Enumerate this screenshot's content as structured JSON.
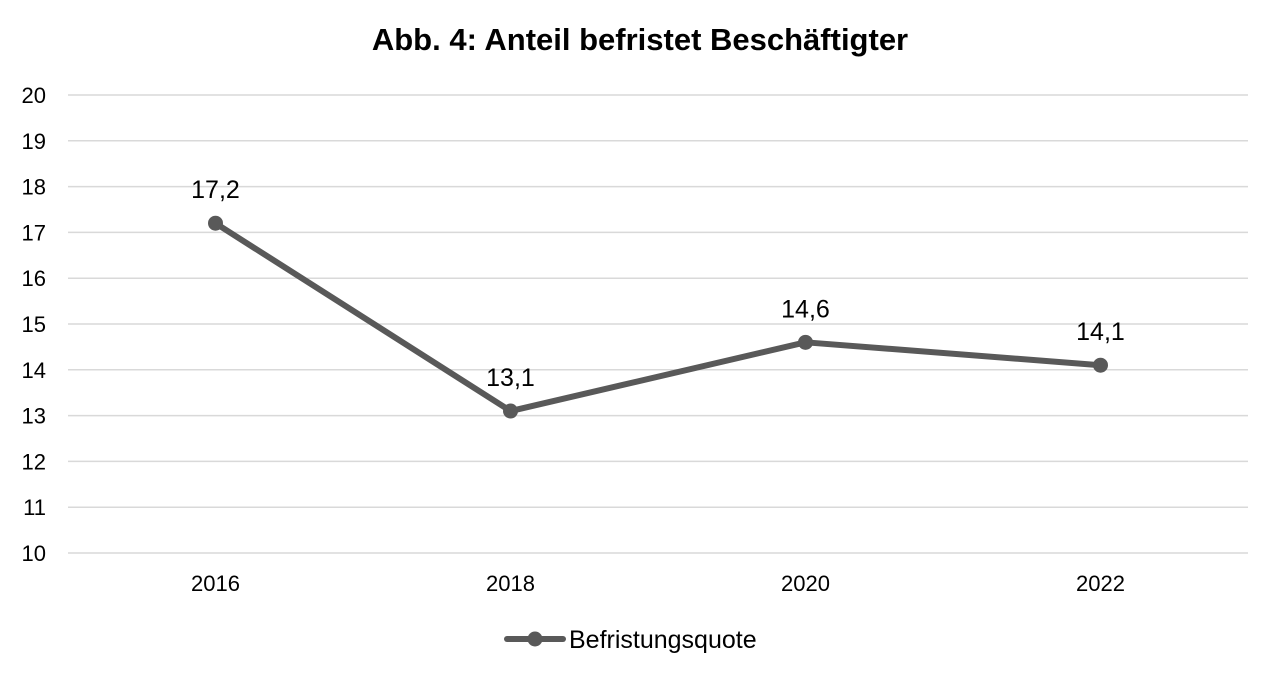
{
  "chart_data": {
    "type": "line",
    "title": "Abb. 4: Anteil befristet Beschäftigter",
    "xlabel": "",
    "ylabel": "",
    "categories": [
      "2016",
      "2018",
      "2020",
      "2022"
    ],
    "series": [
      {
        "name": "Befristungsquote",
        "values": [
          17.2,
          13.1,
          14.6,
          14.1
        ],
        "labels": [
          "17,2",
          "13,1",
          "14,6",
          "14,1"
        ],
        "color": "#595959"
      }
    ],
    "ylim": [
      10,
      20
    ],
    "yticks": [
      "10",
      "11",
      "12",
      "13",
      "14",
      "15",
      "16",
      "17",
      "18",
      "19",
      "20"
    ],
    "grid": true,
    "gridColor": "#d9d9d9",
    "legend": "bottom-center"
  }
}
